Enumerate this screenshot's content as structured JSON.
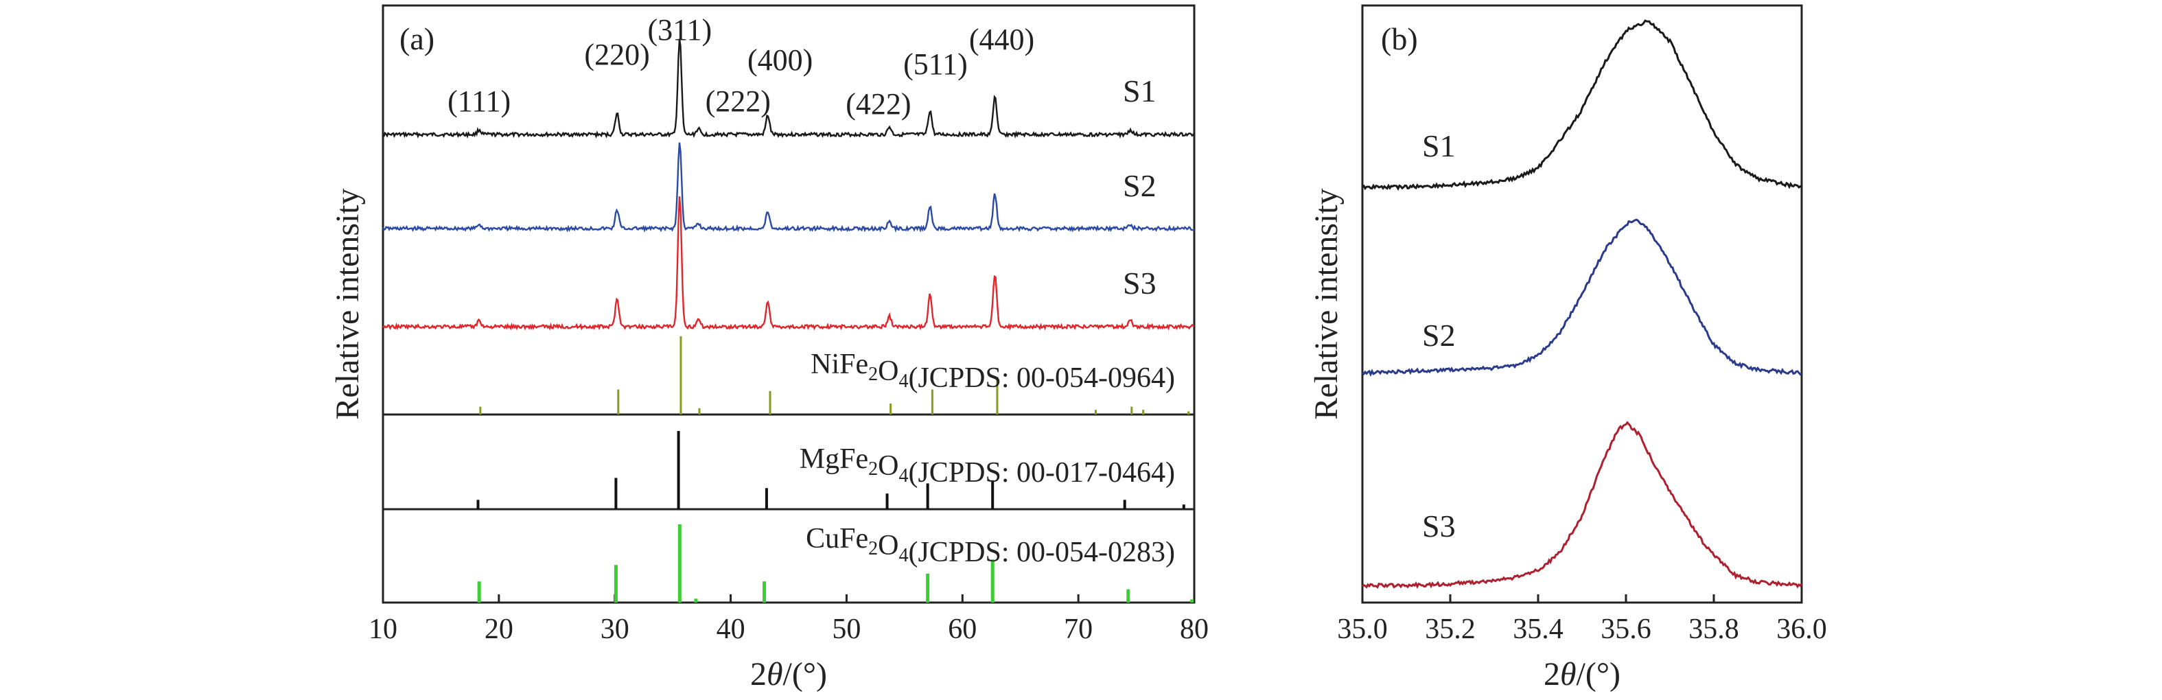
{
  "chart_data": [
    {
      "panel_label": "(a)",
      "type": "line",
      "xlabel_prefix": "2",
      "xlabel_theta": "θ",
      "xlabel_suffix": "/(°)",
      "ylabel": "Relative intensity",
      "xlim": [
        10,
        80
      ],
      "xticks": [
        10,
        20,
        30,
        40,
        50,
        60,
        70,
        80
      ],
      "colors": {
        "S1": "#1a1a1a",
        "S2": "#2a4aa8",
        "S3": "#e0262b",
        "ni": "#8a9a1c",
        "mg": "#111111",
        "cu": "#3ccc33"
      },
      "peak_labels": [
        {
          "text": "(111)",
          "x": 18.3
        },
        {
          "text": "(220)",
          "x": 30.2
        },
        {
          "text": "(311)",
          "x": 35.6
        },
        {
          "text": "(222)",
          "x": 37.2
        },
        {
          "text": "(400)",
          "x": 43.2
        },
        {
          "text": "(422)",
          "x": 53.7
        },
        {
          "text": "(511)",
          "x": 57.2
        },
        {
          "text": "(440)",
          "x": 62.8
        }
      ],
      "peaks": [
        {
          "x": 18.3,
          "h": 0.05
        },
        {
          "x": 30.2,
          "h": 0.22
        },
        {
          "x": 35.6,
          "h": 1.0
        },
        {
          "x": 37.2,
          "h": 0.06
        },
        {
          "x": 43.2,
          "h": 0.2
        },
        {
          "x": 53.7,
          "h": 0.08
        },
        {
          "x": 57.2,
          "h": 0.25
        },
        {
          "x": 62.8,
          "h": 0.4
        },
        {
          "x": 74.5,
          "h": 0.05
        }
      ],
      "series": [
        {
          "name": "S1",
          "scale": 0.8
        },
        {
          "name": "S2",
          "scale": 1.0
        },
        {
          "name": "S3",
          "scale": 1.05
        }
      ],
      "references": [
        {
          "name_prefix": "NiFe",
          "name_mid": "O",
          "name_suffix": "(JCPDS: 00-054-0964)",
          "sub1": "2",
          "sub2": "4",
          "lines": [
            {
              "x": 18.4,
              "h": 0.1
            },
            {
              "x": 30.3,
              "h": 0.32
            },
            {
              "x": 35.7,
              "h": 1.0
            },
            {
              "x": 37.3,
              "h": 0.08
            },
            {
              "x": 43.4,
              "h": 0.3
            },
            {
              "x": 53.8,
              "h": 0.14
            },
            {
              "x": 57.4,
              "h": 0.32
            },
            {
              "x": 63.0,
              "h": 0.48
            },
            {
              "x": 71.5,
              "h": 0.06
            },
            {
              "x": 74.6,
              "h": 0.1
            },
            {
              "x": 75.6,
              "h": 0.06
            },
            {
              "x": 79.5,
              "h": 0.04
            }
          ]
        },
        {
          "name_prefix": "MgFe",
          "name_mid": "O",
          "name_suffix": "(JCPDS: 00-017-0464)",
          "sub1": "2",
          "sub2": "4",
          "lines": [
            {
              "x": 18.2,
              "h": 0.12
            },
            {
              "x": 30.1,
              "h": 0.4
            },
            {
              "x": 35.5,
              "h": 1.0
            },
            {
              "x": 43.1,
              "h": 0.27
            },
            {
              "x": 53.5,
              "h": 0.2
            },
            {
              "x": 57.0,
              "h": 0.33
            },
            {
              "x": 62.6,
              "h": 0.37
            },
            {
              "x": 74.0,
              "h": 0.12
            },
            {
              "x": 79.1,
              "h": 0.06
            }
          ]
        },
        {
          "name_prefix": "CuFe",
          "name_mid": "O",
          "name_suffix": "(JCPDS: 00-054-0283)",
          "sub1": "2",
          "sub2": "4",
          "lines": [
            {
              "x": 18.3,
              "h": 0.27
            },
            {
              "x": 30.1,
              "h": 0.48
            },
            {
              "x": 35.6,
              "h": 1.0
            },
            {
              "x": 37.0,
              "h": 0.05
            },
            {
              "x": 42.9,
              "h": 0.27
            },
            {
              "x": 57.0,
              "h": 0.37
            },
            {
              "x": 62.6,
              "h": 0.55
            },
            {
              "x": 74.3,
              "h": 0.17
            },
            {
              "x": 79.8,
              "h": 0.04
            }
          ]
        }
      ]
    },
    {
      "panel_label": "(b)",
      "type": "line",
      "xlabel_prefix": "2",
      "xlabel_theta": "θ",
      "xlabel_suffix": "/(°)",
      "ylabel": "Relative intensity",
      "xlim": [
        35.0,
        36.0
      ],
      "xticks": [
        "35.0",
        "35.2",
        "35.4",
        "35.6",
        "35.8",
        "36.0"
      ],
      "series": [
        {
          "name": "S1",
          "color": "#1a1a1a",
          "points": [
            [
              35.0,
              0.03
            ],
            [
              35.1,
              0.03
            ],
            [
              35.2,
              0.04
            ],
            [
              35.3,
              0.06
            ],
            [
              35.35,
              0.08
            ],
            [
              35.4,
              0.14
            ],
            [
              35.45,
              0.3
            ],
            [
              35.5,
              0.48
            ],
            [
              35.55,
              0.75
            ],
            [
              35.6,
              0.94
            ],
            [
              35.65,
              1.0
            ],
            [
              35.7,
              0.88
            ],
            [
              35.75,
              0.62
            ],
            [
              35.8,
              0.35
            ],
            [
              35.85,
              0.16
            ],
            [
              35.9,
              0.08
            ],
            [
              35.95,
              0.05
            ],
            [
              36.0,
              0.03
            ]
          ]
        },
        {
          "name": "S2",
          "color": "#2a3a8c",
          "points": [
            [
              35.0,
              0.02
            ],
            [
              35.1,
              0.03
            ],
            [
              35.2,
              0.04
            ],
            [
              35.3,
              0.05
            ],
            [
              35.35,
              0.07
            ],
            [
              35.4,
              0.13
            ],
            [
              35.45,
              0.28
            ],
            [
              35.5,
              0.52
            ],
            [
              35.55,
              0.8
            ],
            [
              35.6,
              0.97
            ],
            [
              35.62,
              1.0
            ],
            [
              35.65,
              0.94
            ],
            [
              35.7,
              0.72
            ],
            [
              35.75,
              0.45
            ],
            [
              35.8,
              0.2
            ],
            [
              35.85,
              0.08
            ],
            [
              35.9,
              0.04
            ],
            [
              35.95,
              0.03
            ],
            [
              36.0,
              0.02
            ]
          ]
        },
        {
          "name": "S3",
          "color": "#b01f2e",
          "points": [
            [
              35.0,
              0.02
            ],
            [
              35.1,
              0.02
            ],
            [
              35.2,
              0.03
            ],
            [
              35.3,
              0.05
            ],
            [
              35.35,
              0.07
            ],
            [
              35.4,
              0.11
            ],
            [
              35.45,
              0.22
            ],
            [
              35.5,
              0.44
            ],
            [
              35.55,
              0.78
            ],
            [
              35.58,
              0.95
            ],
            [
              35.6,
              1.0
            ],
            [
              35.63,
              0.93
            ],
            [
              35.67,
              0.72
            ],
            [
              35.72,
              0.5
            ],
            [
              35.78,
              0.26
            ],
            [
              35.85,
              0.08
            ],
            [
              35.9,
              0.04
            ],
            [
              35.95,
              0.03
            ],
            [
              36.0,
              0.02
            ]
          ]
        }
      ]
    }
  ]
}
